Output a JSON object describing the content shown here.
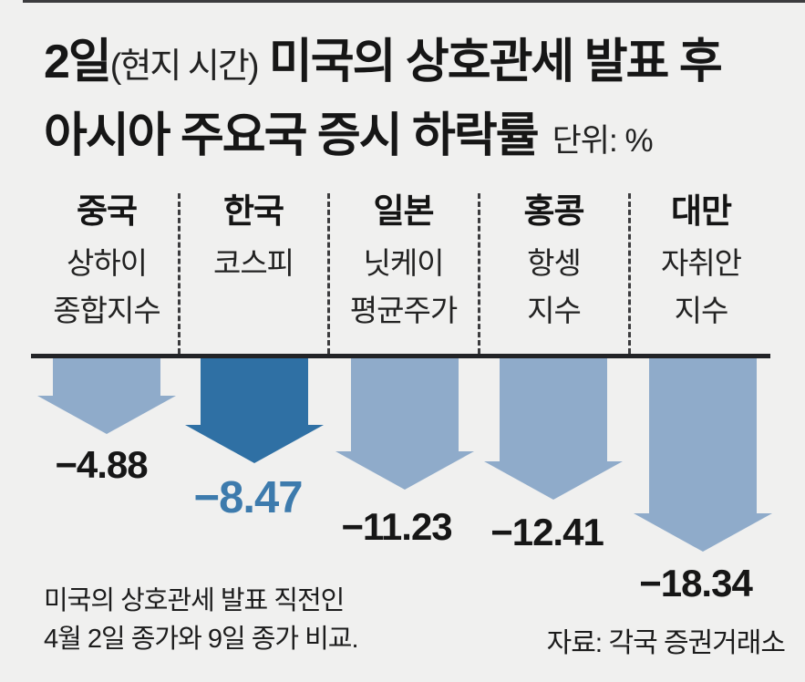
{
  "title": {
    "date_bold": "2일",
    "date_note": "(현지 시간)",
    "line1_rest": " 미국의 상호관세 발표 후",
    "line2": "아시아 주요국 증시 하락률",
    "unit_label": "단위: %"
  },
  "chart_data": {
    "type": "bar",
    "style": "downward-arrows",
    "unit": "%",
    "categories": [
      "중국",
      "한국",
      "일본",
      "홍콩",
      "대만"
    ],
    "index_names": [
      [
        "상하이",
        "종합지수"
      ],
      [
        "코스피"
      ],
      [
        "닛케이",
        "평균주가"
      ],
      [
        "항셍",
        "지수"
      ],
      [
        "자취안",
        "지수"
      ]
    ],
    "values": [
      -4.88,
      -8.47,
      -11.23,
      -12.41,
      -18.34
    ],
    "value_labels": [
      "−4.88",
      "−8.47",
      "−11.23",
      "−12.41",
      "−18.34"
    ],
    "highlight_index": 1,
    "legend_position": "none",
    "grid": false,
    "colors": {
      "arrow": "#8fabca",
      "arrow_highlight": "#2f70a4",
      "value_text": "#161616",
      "value_text_highlight": "#3d7bad"
    }
  },
  "footnote": {
    "line1": "미국의 상호관세 발표 직전인",
    "line2": "4월 2일 종가와 9일 종가 비교."
  },
  "source": "자료: 각국 증권거래소"
}
